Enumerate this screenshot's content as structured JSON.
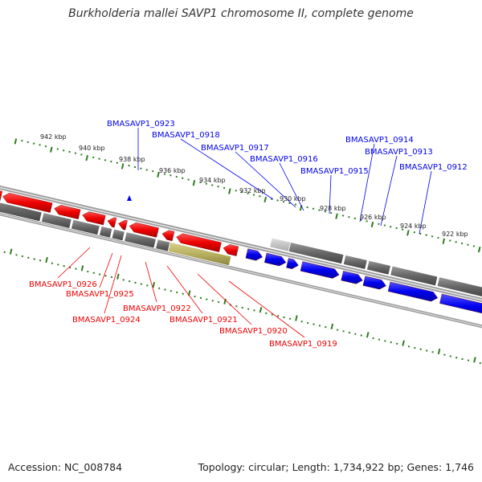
{
  "title": "Burkholderia mallei SAVP1 chromosome II, complete genome",
  "footer": {
    "accession": "Accession: NC_008784",
    "stats": "Topology: circular; Length: 1,734,922 bp; Genes: 1,746"
  },
  "colors": {
    "forward_gene": "#0000ee",
    "reverse_gene": "#ee0000",
    "grey_feature": "#666666",
    "olive_feature": "#b8b060",
    "tick": "#2e7d1e",
    "backbone": "#9a9a9a"
  },
  "scale_labels": [
    "942 kbp",
    "940 kbp",
    "938 kbp",
    "936 kbp",
    "934 kbp",
    "932 kbp",
    "930 kbp",
    "928 kbp",
    "926 kbp",
    "924 kbp",
    "922 kbp"
  ],
  "blue_genes": [
    "BMASAVP1_0923",
    "BMASAVP1_0918",
    "BMASAVP1_0917",
    "BMASAVP1_0916",
    "BMASAVP1_0915",
    "BMASAVP1_0914",
    "BMASAVP1_0913",
    "BMASAVP1_0912"
  ],
  "red_genes": [
    "BMASAVP1_0926",
    "BMASAVP1_0925",
    "BMASAVP1_0924",
    "BMASAVP1_0922",
    "BMASAVP1_0921",
    "BMASAVP1_0920",
    "BMASAVP1_0919"
  ]
}
